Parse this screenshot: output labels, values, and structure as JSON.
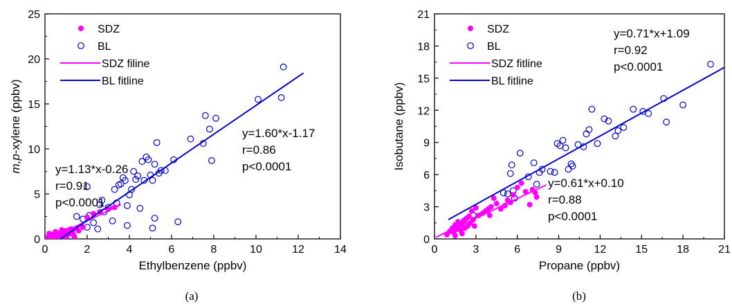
{
  "colors": {
    "sdz": "#ff00ff",
    "bl": "#0000cc",
    "axis": "#000000"
  },
  "chart_data": [
    {
      "type": "scatter",
      "caption": "(a)",
      "xlabel": "Ethylbenzene (ppbv)",
      "ylabel_italic": "m,p",
      "ylabel_rest": "-xylene (ppbv)",
      "xlim": [
        0,
        14
      ],
      "ylim": [
        0,
        25
      ],
      "xticks": [
        0,
        2,
        4,
        6,
        8,
        10,
        12,
        14
      ],
      "yticks": [
        0,
        5,
        10,
        15,
        20,
        25
      ],
      "grid": false,
      "legend": {
        "placement": "top-left",
        "entries": [
          {
            "label": "SDZ",
            "kind": "filled-marker",
            "series": "sdz"
          },
          {
            "label": "BL",
            "kind": "open-marker",
            "series": "bl"
          },
          {
            "label": "SDZ filine",
            "kind": "line",
            "series": "sdz"
          },
          {
            "label": "BL fitline",
            "kind": "line",
            "series": "bl"
          }
        ]
      },
      "annotations": {
        "sdz": [
          "y=1.13*x-0.26",
          "r=0.91",
          "p<0.0001"
        ],
        "bl": [
          "y=1.60*x-1.17",
          "r=0.86",
          "p<0.0001"
        ]
      },
      "series": [
        {
          "key": "sdz",
          "marker": "filled",
          "points": [
            [
              0.1,
              0.1
            ],
            [
              0.15,
              0.2
            ],
            [
              0.2,
              0.05
            ],
            [
              0.25,
              0.3
            ],
            [
              0.3,
              0.15
            ],
            [
              0.35,
              0.4
            ],
            [
              0.4,
              0.2
            ],
            [
              0.45,
              0.5
            ],
            [
              0.5,
              0.3
            ],
            [
              0.55,
              0.1
            ],
            [
              0.6,
              0.6
            ],
            [
              0.65,
              0.45
            ],
            [
              0.7,
              0.25
            ],
            [
              0.75,
              0.7
            ],
            [
              0.8,
              0.5
            ],
            [
              0.85,
              0.3
            ],
            [
              0.9,
              0.8
            ],
            [
              0.95,
              0.6
            ],
            [
              1.0,
              0.9
            ],
            [
              1.05,
              0.4
            ],
            [
              1.1,
              0.75
            ],
            [
              1.15,
              1.0
            ],
            [
              1.2,
              0.6
            ],
            [
              1.25,
              1.1
            ],
            [
              1.3,
              0.85
            ],
            [
              1.35,
              0.5
            ],
            [
              1.4,
              0.2
            ],
            [
              1.5,
              1.2
            ],
            [
              1.6,
              0.9
            ],
            [
              1.8,
              1.3
            ],
            [
              2.0,
              2.4
            ],
            [
              2.3,
              2.8
            ],
            [
              2.6,
              3.0
            ],
            [
              3.0,
              3.3
            ],
            [
              3.3,
              3.5
            ],
            [
              0.2,
              0.6
            ],
            [
              0.5,
              0.8
            ],
            [
              0.8,
              1.0
            ],
            [
              1.0,
              0.15
            ],
            [
              0.3,
              0.5
            ]
          ]
        },
        {
          "key": "bl",
          "marker": "open",
          "points": [
            [
              1.5,
              2.5
            ],
            [
              1.8,
              2.2
            ],
            [
              2.0,
              1.3
            ],
            [
              2.1,
              2.6
            ],
            [
              2.3,
              1.8
            ],
            [
              2.5,
              1.1
            ],
            [
              2.6,
              3.8
            ],
            [
              2.7,
              4.3
            ],
            [
              2.8,
              3.0
            ],
            [
              3.0,
              3.5
            ],
            [
              3.2,
              2.0
            ],
            [
              3.3,
              5.5
            ],
            [
              3.4,
              4.0
            ],
            [
              3.5,
              6.0
            ],
            [
              3.6,
              6.1
            ],
            [
              3.7,
              6.8
            ],
            [
              3.8,
              6.5
            ],
            [
              3.9,
              1.5
            ],
            [
              3.9,
              3.7
            ],
            [
              4.0,
              4.9
            ],
            [
              4.1,
              5.5
            ],
            [
              4.2,
              7.5
            ],
            [
              4.3,
              6.6
            ],
            [
              4.4,
              7.0
            ],
            [
              4.5,
              3.4
            ],
            [
              4.6,
              8.6
            ],
            [
              4.7,
              6.5
            ],
            [
              4.8,
              9.1
            ],
            [
              4.9,
              8.8
            ],
            [
              5.0,
              7.1
            ],
            [
              5.1,
              6.5
            ],
            [
              5.1,
              1.2
            ],
            [
              5.2,
              2.3
            ],
            [
              5.2,
              8.3
            ],
            [
              5.3,
              10.7
            ],
            [
              5.4,
              7.3
            ],
            [
              5.5,
              7.6
            ],
            [
              5.7,
              7.6
            ],
            [
              6.1,
              8.8
            ],
            [
              6.3,
              1.9
            ],
            [
              6.9,
              11.1
            ],
            [
              7.5,
              10.6
            ],
            [
              7.6,
              13.7
            ],
            [
              7.8,
              12.2
            ],
            [
              7.9,
              8.7
            ],
            [
              8.1,
              13.4
            ],
            [
              10.1,
              15.5
            ],
            [
              11.2,
              15.7
            ],
            [
              11.3,
              19.1
            ],
            [
              2.0,
              5.8
            ]
          ]
        }
      ],
      "fitlines": [
        {
          "key": "sdz",
          "slope": 1.13,
          "intercept": -0.26,
          "x": [
            0.5,
            3.6
          ]
        },
        {
          "key": "bl",
          "slope": 1.6,
          "intercept": -1.17,
          "x": [
            0.73,
            12.25
          ]
        }
      ]
    },
    {
      "type": "scatter",
      "caption": "(b)",
      "xlabel": "Propane (ppbv)",
      "ylabel": "Isobutane (ppbv)",
      "xlim": [
        0,
        21
      ],
      "ylim": [
        0,
        21
      ],
      "xticks": [
        0,
        3,
        6,
        9,
        12,
        15,
        18,
        21
      ],
      "yticks": [
        0,
        3,
        6,
        9,
        12,
        15,
        18,
        21
      ],
      "grid": false,
      "legend": {
        "placement": "top-left",
        "entries": [
          {
            "label": "SDZ",
            "kind": "filled-marker",
            "series": "sdz"
          },
          {
            "label": "BL",
            "kind": "open-marker",
            "series": "bl"
          },
          {
            "label": "SDZ fitline",
            "kind": "line",
            "series": "sdz"
          },
          {
            "label": "BL fitline",
            "kind": "line",
            "series": "bl"
          }
        ]
      },
      "annotations": {
        "sdz": [
          "y=0.61*x+0.10",
          "r=0.88",
          "p<0.0001"
        ],
        "bl": [
          "y=0.71*x+1.09",
          "r=0.92",
          "p<0.0001"
        ]
      },
      "series": [
        {
          "key": "sdz",
          "marker": "filled",
          "points": [
            [
              0.9,
              0.4
            ],
            [
              1.1,
              0.7
            ],
            [
              1.3,
              1.0
            ],
            [
              1.4,
              0.6
            ],
            [
              1.5,
              1.3
            ],
            [
              1.6,
              0.9
            ],
            [
              1.7,
              1.6
            ],
            [
              1.8,
              1.1
            ],
            [
              1.9,
              0.8
            ],
            [
              2.0,
              1.4
            ],
            [
              2.1,
              1.7
            ],
            [
              2.2,
              1.0
            ],
            [
              2.3,
              1.9
            ],
            [
              2.4,
              1.2
            ],
            [
              2.5,
              2.1
            ],
            [
              2.6,
              1.5
            ],
            [
              2.7,
              2.6
            ],
            [
              2.8,
              1.8
            ],
            [
              3.0,
              2.9
            ],
            [
              3.2,
              2.2
            ],
            [
              3.5,
              2.4
            ],
            [
              3.7,
              2.6
            ],
            [
              3.9,
              2.8
            ],
            [
              4.1,
              3.0
            ],
            [
              4.3,
              3.8
            ],
            [
              4.5,
              3.3
            ],
            [
              4.8,
              2.8
            ],
            [
              5.1,
              3.1
            ],
            [
              5.3,
              3.6
            ],
            [
              5.5,
              3.4
            ],
            [
              5.7,
              4.1
            ],
            [
              6.0,
              4.8
            ],
            [
              6.3,
              5.2
            ],
            [
              6.6,
              4.4
            ],
            [
              6.9,
              3.2
            ],
            [
              7.1,
              4.6
            ],
            [
              7.3,
              4.3
            ],
            [
              7.4,
              3.9
            ],
            [
              1.5,
              0.3
            ],
            [
              2.0,
              0.5
            ],
            [
              2.9,
              1.2
            ],
            [
              4.0,
              2.2
            ]
          ]
        },
        {
          "key": "bl",
          "marker": "open",
          "points": [
            [
              2.8,
              2.2
            ],
            [
              5.0,
              4.3
            ],
            [
              5.3,
              4.2
            ],
            [
              5.5,
              6.1
            ],
            [
              5.6,
              6.9
            ],
            [
              5.7,
              4.5
            ],
            [
              5.8,
              3.8
            ],
            [
              6.2,
              8.0
            ],
            [
              6.8,
              5.8
            ],
            [
              7.2,
              7.1
            ],
            [
              7.4,
              5.1
            ],
            [
              7.6,
              6.2
            ],
            [
              7.8,
              6.5
            ],
            [
              8.4,
              6.3
            ],
            [
              8.7,
              6.2
            ],
            [
              8.9,
              8.9
            ],
            [
              9.1,
              8.7
            ],
            [
              9.3,
              9.2
            ],
            [
              9.5,
              8.5
            ],
            [
              9.7,
              6.5
            ],
            [
              9.9,
              7.0
            ],
            [
              10.0,
              6.8
            ],
            [
              10.4,
              8.8
            ],
            [
              10.8,
              8.6
            ],
            [
              11.0,
              9.8
            ],
            [
              11.2,
              10.2
            ],
            [
              11.4,
              12.1
            ],
            [
              11.8,
              8.9
            ],
            [
              12.3,
              11.2
            ],
            [
              12.6,
              11.0
            ],
            [
              13.1,
              9.6
            ],
            [
              13.3,
              10.1
            ],
            [
              13.7,
              10.4
            ],
            [
              14.4,
              12.1
            ],
            [
              15.1,
              11.9
            ],
            [
              15.5,
              11.7
            ],
            [
              16.6,
              13.1
            ],
            [
              16.8,
              10.9
            ],
            [
              18.0,
              12.5
            ],
            [
              20.0,
              16.3
            ]
          ]
        }
      ],
      "fitlines": [
        {
          "key": "sdz",
          "slope": 0.61,
          "intercept": 0.1,
          "x": [
            0.1,
            8.1
          ]
        },
        {
          "key": "bl",
          "slope": 0.71,
          "intercept": 1.09,
          "x": [
            1.0,
            21.0
          ]
        }
      ]
    }
  ]
}
